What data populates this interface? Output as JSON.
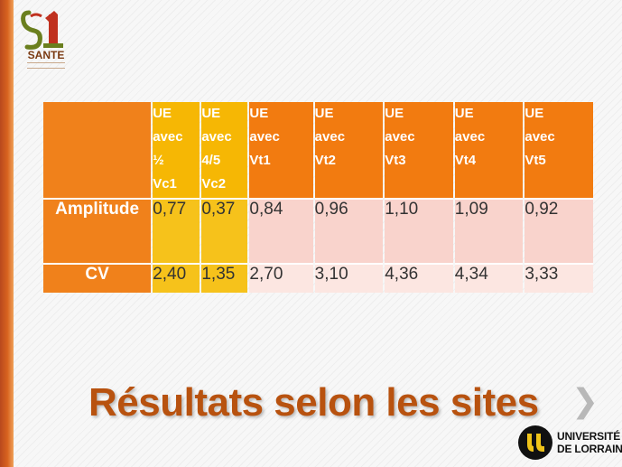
{
  "slide": {
    "title": "Résultats selon les sites",
    "next_glyph": "❯"
  },
  "logo": {
    "text": "SANTE"
  },
  "university": {
    "line1": "UNIVERSITÉ",
    "line2": "DE LORRAINE"
  },
  "table": {
    "headers": [
      "UE\navec\n½\nVc1",
      "UE\navec\n4/5\nVc2",
      "UE\navec\nVt1",
      "UE\navec\nVt2",
      "UE\navec\nVt3",
      "UE\navec\nVt4",
      "UE\navec\nVt5"
    ],
    "rows": [
      {
        "label": "Amplitude",
        "values": [
          "0,77",
          "0,37",
          "0,84",
          "0,96",
          "1,10",
          "1,09",
          "0,92"
        ]
      },
      {
        "label": "CV",
        "values": [
          "2,40",
          "1,35",
          "2,70",
          "3,10",
          "4,36",
          "4,34",
          "3,33"
        ]
      }
    ]
  },
  "colors": {
    "orange": "#f27b10",
    "yellow": "#f6b704",
    "title": "#b8520f"
  }
}
